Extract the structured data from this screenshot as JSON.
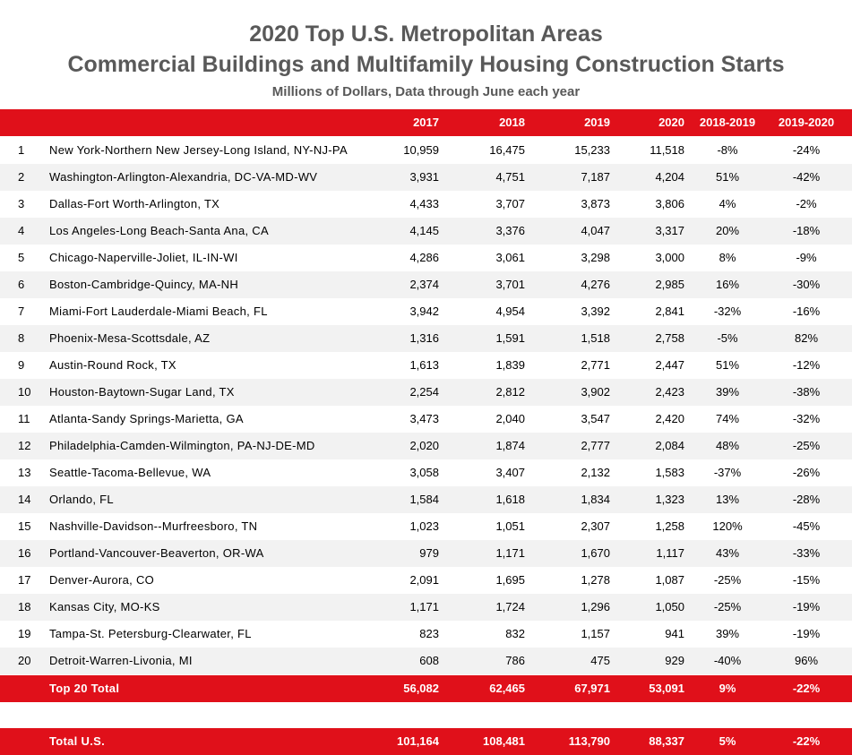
{
  "title": "2020 Top U.S. Metropolitan Areas",
  "subtitle": "Commercial Buildings and Multifamily Housing Construction Starts",
  "note": "Millions of Dollars, Data through June each year",
  "header": [
    "",
    "",
    "2017",
    "2018",
    "2019",
    "2020",
    "2018-2019",
    "2019-2020"
  ],
  "rows": [
    [
      "1",
      "New York-Northern New Jersey-Long Island, NY-NJ-PA",
      "10,959",
      "16,475",
      "15,233",
      "11,518",
      "-8%",
      "-24%"
    ],
    [
      "2",
      "Washington-Arlington-Alexandria, DC-VA-MD-WV",
      "3,931",
      "4,751",
      "7,187",
      "4,204",
      "51%",
      "-42%"
    ],
    [
      "3",
      "Dallas-Fort Worth-Arlington, TX",
      "4,433",
      "3,707",
      "3,873",
      "3,806",
      "4%",
      "-2%"
    ],
    [
      "4",
      "Los Angeles-Long Beach-Santa Ana, CA",
      "4,145",
      "3,376",
      "4,047",
      "3,317",
      "20%",
      "-18%"
    ],
    [
      "5",
      "Chicago-Naperville-Joliet, IL-IN-WI",
      "4,286",
      "3,061",
      "3,298",
      "3,000",
      "8%",
      "-9%"
    ],
    [
      "6",
      "Boston-Cambridge-Quincy, MA-NH",
      "2,374",
      "3,701",
      "4,276",
      "2,985",
      "16%",
      "-30%"
    ],
    [
      "7",
      "Miami-Fort Lauderdale-Miami Beach, FL",
      "3,942",
      "4,954",
      "3,392",
      "2,841",
      "-32%",
      "-16%"
    ],
    [
      "8",
      "Phoenix-Mesa-Scottsdale, AZ",
      "1,316",
      "1,591",
      "1,518",
      "2,758",
      "-5%",
      "82%"
    ],
    [
      "9",
      "Austin-Round Rock, TX",
      "1,613",
      "1,839",
      "2,771",
      "2,447",
      "51%",
      "-12%"
    ],
    [
      "10",
      "Houston-Baytown-Sugar Land, TX",
      "2,254",
      "2,812",
      "3,902",
      "2,423",
      "39%",
      "-38%"
    ],
    [
      "11",
      "Atlanta-Sandy Springs-Marietta, GA",
      "3,473",
      "2,040",
      "3,547",
      "2,420",
      "74%",
      "-32%"
    ],
    [
      "12",
      "Philadelphia-Camden-Wilmington, PA-NJ-DE-MD",
      "2,020",
      "1,874",
      "2,777",
      "2,084",
      "48%",
      "-25%"
    ],
    [
      "13",
      "Seattle-Tacoma-Bellevue, WA",
      "3,058",
      "3,407",
      "2,132",
      "1,583",
      "-37%",
      "-26%"
    ],
    [
      "14",
      "Orlando, FL",
      "1,584",
      "1,618",
      "1,834",
      "1,323",
      "13%",
      "-28%"
    ],
    [
      "15",
      "Nashville-Davidson--Murfreesboro, TN",
      "1,023",
      "1,051",
      "2,307",
      "1,258",
      "120%",
      "-45%"
    ],
    [
      "16",
      "Portland-Vancouver-Beaverton, OR-WA",
      "979",
      "1,171",
      "1,670",
      "1,117",
      "43%",
      "-33%"
    ],
    [
      "17",
      "Denver-Aurora, CO",
      "2,091",
      "1,695",
      "1,278",
      "1,087",
      "-25%",
      "-15%"
    ],
    [
      "18",
      "Kansas City, MO-KS",
      "1,171",
      "1,724",
      "1,296",
      "1,050",
      "-25%",
      "-19%"
    ],
    [
      "19",
      "Tampa-St. Petersburg-Clearwater, FL",
      "823",
      "832",
      "1,157",
      "941",
      "39%",
      "-19%"
    ],
    [
      "20",
      "Detroit-Warren-Livonia, MI",
      "608",
      "786",
      "475",
      "929",
      "-40%",
      "96%"
    ]
  ],
  "top20_total": [
    "",
    "Top 20 Total",
    "56,082",
    "62,465",
    "67,971",
    "53,091",
    "9%",
    "-22%"
  ],
  "us_total": [
    "",
    "Total U.S.",
    "101,164",
    "108,481",
    "113,790",
    "88,337",
    "5%",
    "-22%"
  ],
  "colors": {
    "header_bg": "#e0101a",
    "alt_row_bg": "#f2f2f2",
    "title": "#595959"
  }
}
